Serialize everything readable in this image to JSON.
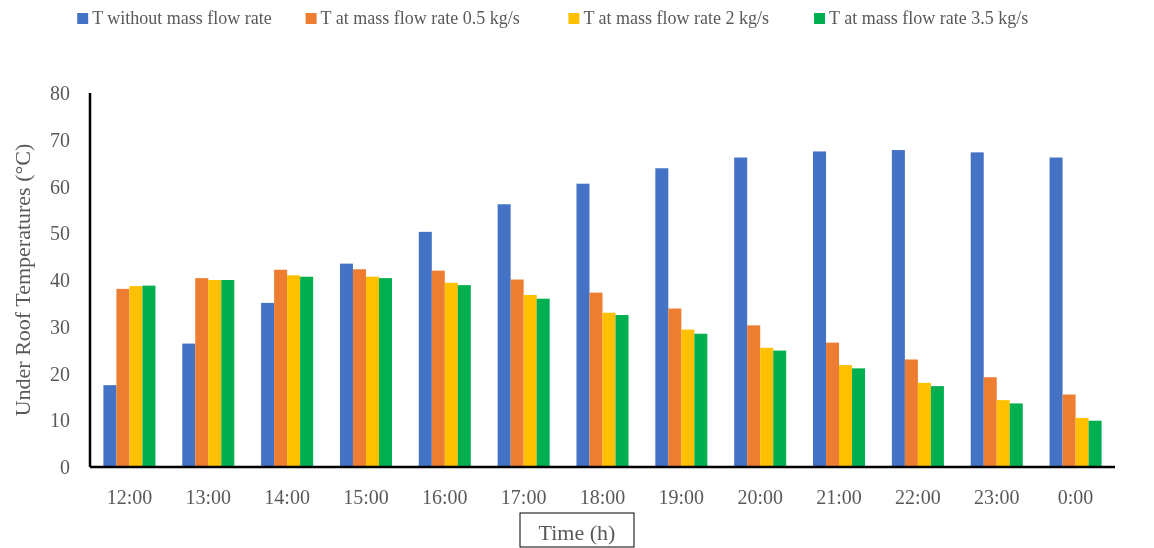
{
  "chart_data": {
    "type": "bar",
    "xlabel": "Time (h)",
    "ylabel": "Under Roof Temperatures (°C)",
    "categories": [
      "12:00",
      "13:00",
      "14:00",
      "15:00",
      "16:00",
      "17:00",
      "18:00",
      "19:00",
      "20:00",
      "21:00",
      "22:00",
      "23:00",
      "0:00"
    ],
    "series": [
      {
        "name": "T without mass flow rate",
        "color": "#4472c4",
        "values": [
          17.5,
          26.4,
          35.1,
          43.5,
          50.3,
          56.2,
          60.6,
          63.9,
          66.2,
          67.5,
          67.8,
          67.3,
          66.2
        ]
      },
      {
        "name": "T at mass flow rate 0.5 kg/s",
        "color": "#ed7d31",
        "values": [
          38.1,
          40.4,
          42.2,
          42.3,
          42.0,
          40.1,
          37.3,
          33.9,
          30.3,
          26.6,
          23.0,
          19.2,
          15.5
        ]
      },
      {
        "name": "T at mass flow rate 2 kg/s",
        "color": "#ffc000",
        "values": [
          38.7,
          40.0,
          41.0,
          40.7,
          39.4,
          36.8,
          33.0,
          29.4,
          25.5,
          21.8,
          18.0,
          14.3,
          10.5
        ]
      },
      {
        "name": "T at mass flow rate 3.5 kg/s",
        "color": "#00b050",
        "values": [
          38.8,
          40.0,
          40.7,
          40.4,
          38.9,
          36.0,
          32.5,
          28.5,
          24.9,
          21.1,
          17.3,
          13.6,
          9.9
        ]
      }
    ],
    "ylim": [
      0,
      80
    ],
    "yticks": [
      0,
      10,
      20,
      30,
      40,
      50,
      60,
      70,
      80
    ],
    "grid": false,
    "legend": "top"
  }
}
